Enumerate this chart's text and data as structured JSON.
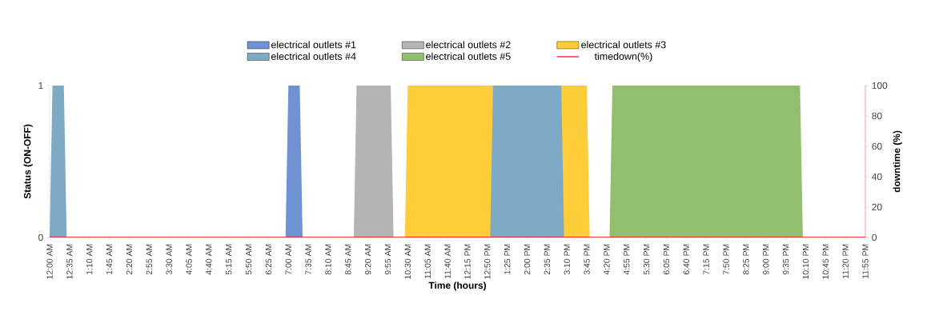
{
  "chart_data": {
    "type": "area",
    "xlabel": "Time (hours)",
    "ylabel": "Status (ON-OFF)",
    "y2label": "downtime (%)",
    "legend": "top",
    "marker": "none",
    "xlim": [
      0,
      23.9167
    ],
    "ylim": [
      0,
      1
    ],
    "yticks": [
      0,
      1
    ],
    "y2lim": [
      0,
      100
    ],
    "y2ticks": [
      0,
      20,
      40,
      60,
      80,
      100
    ],
    "xticks": [
      {
        "value": 0,
        "label": "12:00 AM"
      },
      {
        "value": 0.5833,
        "label": "12:35 AM"
      },
      {
        "value": 1.1667,
        "label": "1:10 AM"
      },
      {
        "value": 1.75,
        "label": "1:45 AM"
      },
      {
        "value": 2.3333,
        "label": "2:20 AM"
      },
      {
        "value": 2.9167,
        "label": "2:55 AM"
      },
      {
        "value": 3.5,
        "label": "3:30 AM"
      },
      {
        "value": 4.0833,
        "label": "4:05 AM"
      },
      {
        "value": 4.6667,
        "label": "4:40 AM"
      },
      {
        "value": 5.25,
        "label": "5:15 AM"
      },
      {
        "value": 5.8333,
        "label": "5:50 AM"
      },
      {
        "value": 6.4167,
        "label": "6:25 AM"
      },
      {
        "value": 7,
        "label": "7:00 AM"
      },
      {
        "value": 7.5833,
        "label": "7:35 AM"
      },
      {
        "value": 8.1667,
        "label": "8:10 AM"
      },
      {
        "value": 8.75,
        "label": "8:45 AM"
      },
      {
        "value": 9.3333,
        "label": "9:20 AM"
      },
      {
        "value": 9.9167,
        "label": "9:55 AM"
      },
      {
        "value": 10.5,
        "label": "10:30 AM"
      },
      {
        "value": 11.0833,
        "label": "11:05 AM"
      },
      {
        "value": 11.6667,
        "label": "11:40 AM"
      },
      {
        "value": 12.25,
        "label": "12:15 PM"
      },
      {
        "value": 12.8333,
        "label": "12:50 PM"
      },
      {
        "value": 13.4167,
        "label": "1:25 PM"
      },
      {
        "value": 14,
        "label": "2:00 PM"
      },
      {
        "value": 14.5833,
        "label": "2:35 PM"
      },
      {
        "value": 15.1667,
        "label": "3:10 PM"
      },
      {
        "value": 15.75,
        "label": "3:45 PM"
      },
      {
        "value": 16.3333,
        "label": "4:20 PM"
      },
      {
        "value": 16.9167,
        "label": "4:55 PM"
      },
      {
        "value": 17.5,
        "label": "5:30 PM"
      },
      {
        "value": 18.0833,
        "label": "6:05 PM"
      },
      {
        "value": 18.6667,
        "label": "6:40 PM"
      },
      {
        "value": 19.25,
        "label": "7:15 PM"
      },
      {
        "value": 19.8333,
        "label": "7:50 PM"
      },
      {
        "value": 20.4167,
        "label": "8:25 PM"
      },
      {
        "value": 21,
        "label": "9:00 PM"
      },
      {
        "value": 21.5833,
        "label": "9:35 PM"
      },
      {
        "value": 22.1667,
        "label": "10:10 PM"
      },
      {
        "value": 22.75,
        "label": "10:45 PM"
      },
      {
        "value": 23.3333,
        "label": "11:20 PM"
      },
      {
        "value": 23.9167,
        "label": "11:55 PM"
      }
    ],
    "series": [
      {
        "name": "electrical outlets #1",
        "color": "#6f93d2",
        "x": [
          6.9167,
          7,
          7.3333,
          7.4167
        ],
        "values": [
          0,
          1,
          1,
          0
        ]
      },
      {
        "name": "electrical outlets #2",
        "color": "#b4b4b4",
        "x": [
          8.9167,
          9,
          10,
          10.0833
        ],
        "values": [
          0,
          1,
          1,
          0
        ]
      },
      {
        "name": "electrical outlets #3",
        "color": "#ffcc3a",
        "x": [
          10.4167,
          10.5,
          15.75,
          15.8333
        ],
        "values": [
          0,
          1,
          1,
          0
        ]
      },
      {
        "name": "electrical outlets #4",
        "color": "#7faac5",
        "x": [
          0,
          0.0833,
          0.4167,
          0.5,
          12.9167,
          13,
          15,
          15.0833
        ],
        "values": [
          0,
          1,
          1,
          0,
          0,
          1,
          1,
          0
        ]
      },
      {
        "name": "electrical outlets #5",
        "color": "#92bf6e",
        "x": [
          16.4167,
          16.5,
          22,
          22.0833
        ],
        "values": [
          0,
          1,
          1,
          0
        ]
      },
      {
        "name": "timedown(%)",
        "type": "line",
        "axis": "y2",
        "color": "#ff0000",
        "x": [
          0,
          23.9167
        ],
        "values": [
          0,
          0
        ]
      }
    ]
  }
}
